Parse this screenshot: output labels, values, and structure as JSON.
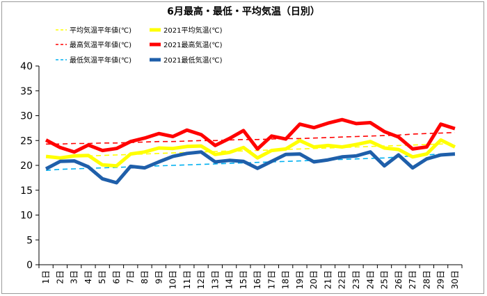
{
  "chart_data": {
    "type": "line",
    "title": "6月最高・最低・平均気温（日別）",
    "xlabel": "",
    "ylabel": "",
    "ylim": [
      0,
      40
    ],
    "yticks": [
      0,
      5,
      10,
      15,
      20,
      25,
      30,
      35,
      40
    ],
    "grid": false,
    "legend_position": "top",
    "categories": [
      "1日",
      "2日",
      "3日",
      "4日",
      "5日",
      "6日",
      "7日",
      "8日",
      "9日",
      "10日",
      "11日",
      "12日",
      "13日",
      "14日",
      "15日",
      "16日",
      "17日",
      "18日",
      "19日",
      "20日",
      "21日",
      "22日",
      "23日",
      "24日",
      "25日",
      "26日",
      "27日",
      "28日",
      "29日",
      "30日"
    ],
    "series": [
      {
        "name": "平均気温平年値(℃)",
        "color": "#ffff00",
        "style": "dashed",
        "values": [
          21.6,
          21.7,
          21.8,
          21.9,
          22.0,
          22.1,
          22.2,
          22.3,
          22.4,
          22.5,
          22.6,
          22.7,
          22.8,
          22.9,
          22.9,
          23.0,
          23.1,
          23.2,
          23.3,
          23.4,
          23.5,
          23.6,
          23.7,
          23.8,
          23.9,
          24.0,
          24.1,
          24.2,
          24.3,
          24.4
        ]
      },
      {
        "name": "2021平均気温(℃)",
        "color": "#ffff00",
        "style": "solid",
        "values": [
          21.8,
          21.5,
          21.9,
          22.0,
          20.1,
          19.9,
          22.3,
          22.7,
          23.5,
          23.4,
          23.8,
          23.9,
          22.2,
          22.6,
          23.6,
          21.5,
          23.0,
          23.3,
          25.0,
          23.7,
          24.0,
          23.7,
          24.2,
          24.8,
          23.5,
          23.2,
          21.7,
          22.3,
          25.1,
          23.7
        ]
      },
      {
        "name": "最高気温平年値(℃)",
        "color": "#ff0000",
        "style": "dashed",
        "values": [
          24.3,
          24.3,
          24.4,
          24.4,
          24.5,
          24.5,
          24.6,
          24.7,
          24.8,
          24.8,
          24.9,
          25.0,
          25.0,
          25.1,
          25.2,
          25.2,
          25.3,
          25.4,
          25.4,
          25.5,
          25.6,
          25.7,
          25.8,
          25.9,
          26.0,
          26.1,
          26.3,
          26.4,
          26.5,
          26.6
        ]
      },
      {
        "name": "2021最高気温(℃)",
        "color": "#ff0000",
        "style": "solid",
        "values": [
          25.1,
          23.6,
          22.7,
          24.1,
          23.0,
          23.4,
          24.8,
          25.5,
          26.4,
          25.8,
          27.1,
          26.2,
          24.0,
          25.4,
          27.0,
          23.3,
          25.9,
          25.3,
          28.3,
          27.6,
          28.5,
          29.2,
          28.4,
          28.6,
          26.8,
          25.7,
          23.3,
          23.7,
          28.3,
          27.4
        ]
      },
      {
        "name": "最低気温平年値(℃)",
        "color": "#00b0f0",
        "style": "dashed",
        "values": [
          19.0,
          19.2,
          19.3,
          19.4,
          19.5,
          19.6,
          19.7,
          19.8,
          19.9,
          20.0,
          20.1,
          20.2,
          20.3,
          20.4,
          20.5,
          20.6,
          20.7,
          20.8,
          20.9,
          21.0,
          21.1,
          21.2,
          21.3,
          21.4,
          21.5,
          21.7,
          21.9,
          22.1,
          22.3,
          22.5
        ]
      },
      {
        "name": "2021最低気温(℃)",
        "color": "#1f5faa",
        "style": "solid",
        "values": [
          19.3,
          20.8,
          20.9,
          19.7,
          17.3,
          16.5,
          19.8,
          19.5,
          20.7,
          21.8,
          22.4,
          22.7,
          20.7,
          21.0,
          20.8,
          19.4,
          20.8,
          22.2,
          22.3,
          20.7,
          21.1,
          21.7,
          21.9,
          22.7,
          19.9,
          22.1,
          19.5,
          21.3,
          22.1,
          22.3
        ]
      }
    ]
  }
}
